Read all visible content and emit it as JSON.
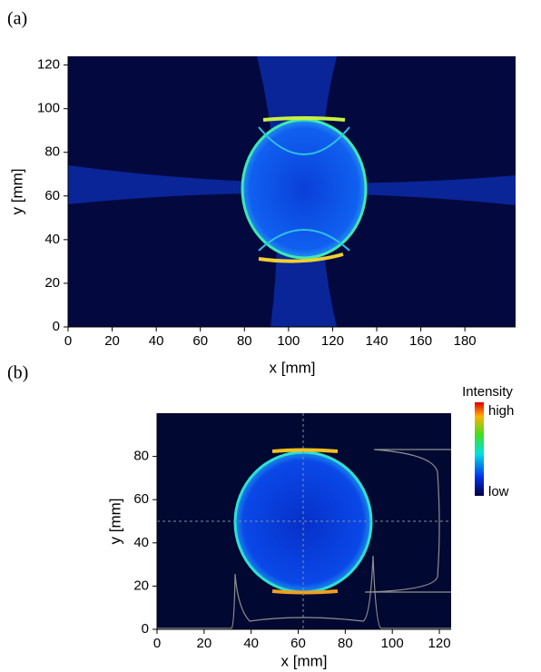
{
  "chart_data": [
    {
      "type": "heatmap",
      "panel_label": "(a)",
      "xlabel": "x [mm]",
      "ylabel": "y [mm]",
      "xlim": [
        0,
        203
      ],
      "ylim": [
        0,
        124
      ],
      "xticks": [
        0,
        20,
        40,
        60,
        80,
        100,
        120,
        140,
        160,
        180
      ],
      "yticks": [
        0,
        20,
        40,
        60,
        80,
        100,
        120
      ]
    },
    {
      "type": "heatmap",
      "panel_label": "(b)",
      "xlabel": "x [mm]",
      "ylabel": "y [mm]",
      "xlim": [
        0,
        125
      ],
      "ylim": [
        0,
        100
      ],
      "xticks": [
        0,
        20,
        40,
        60,
        80,
        100,
        120
      ],
      "yticks": [
        0,
        20,
        40,
        60,
        80
      ],
      "colorbar_title": "Intensity",
      "colorbar_labels": [
        "high",
        "low"
      ]
    }
  ]
}
